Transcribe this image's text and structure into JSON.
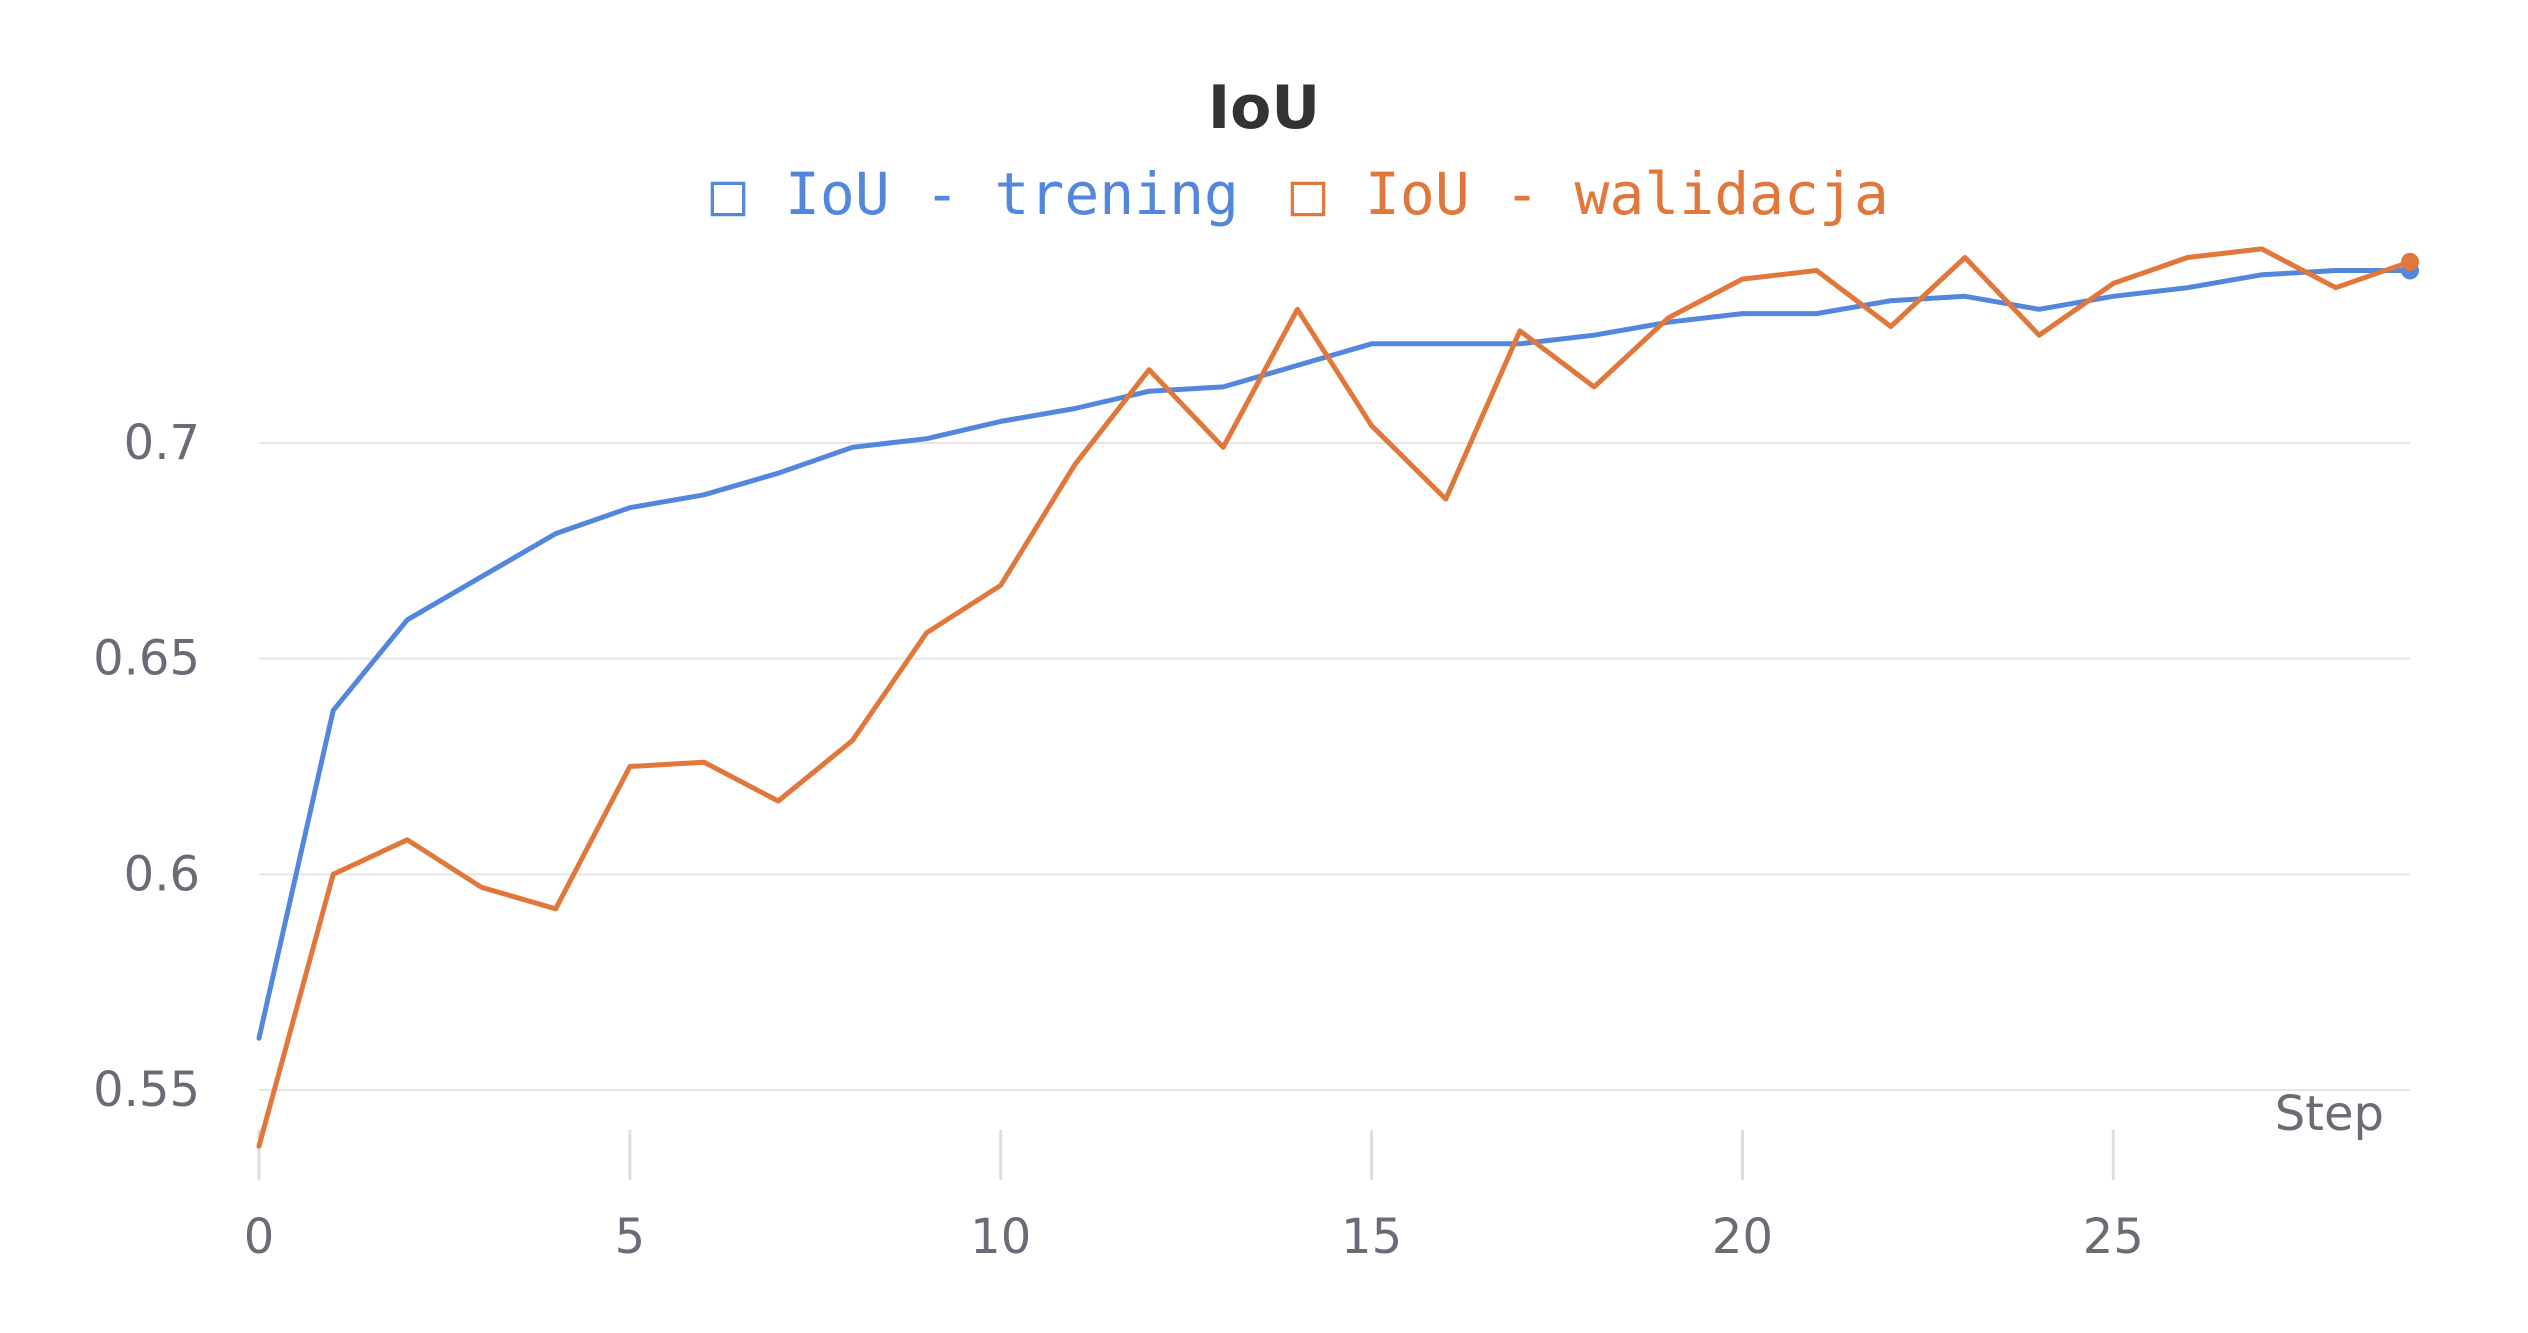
{
  "chart_data": {
    "type": "line",
    "title": "IoU",
    "xlabel": "Step",
    "ylabel": "",
    "xlim": [
      0,
      29
    ],
    "ylim": [
      0.535,
      0.745
    ],
    "x_ticks": [
      0,
      5,
      10,
      15,
      20,
      25
    ],
    "y_ticks": [
      0.55,
      0.6,
      0.65,
      0.7
    ],
    "y_tick_labels": [
      "0.55",
      "0.6",
      "0.65",
      "0.7"
    ],
    "x_tick_labels": [
      "0",
      "5",
      "10",
      "15",
      "20",
      "25"
    ],
    "grid": "horizontal",
    "legend_position": "top-center",
    "series": [
      {
        "name": "IoU - trening",
        "color": "#5387dd",
        "marker_glyph": "□",
        "x": [
          0,
          1,
          2,
          3,
          4,
          5,
          6,
          7,
          8,
          9,
          10,
          11,
          12,
          13,
          14,
          15,
          16,
          17,
          18,
          19,
          20,
          21,
          22,
          23,
          24,
          25,
          26,
          27,
          28,
          29
        ],
        "values": [
          0.562,
          0.638,
          0.659,
          0.669,
          0.679,
          0.685,
          0.688,
          0.693,
          0.699,
          0.701,
          0.705,
          0.708,
          0.712,
          0.713,
          0.718,
          0.723,
          0.723,
          0.723,
          0.725,
          0.728,
          0.73,
          0.73,
          0.733,
          0.734,
          0.731,
          0.734,
          0.736,
          0.739,
          0.74,
          0.74
        ]
      },
      {
        "name": "IoU - walidacja",
        "color": "#e1773b",
        "marker_glyph": "□",
        "x": [
          0,
          1,
          2,
          3,
          4,
          5,
          6,
          7,
          8,
          9,
          10,
          11,
          12,
          13,
          14,
          15,
          16,
          17,
          18,
          19,
          20,
          21,
          22,
          23,
          24,
          25,
          26,
          27,
          28,
          29
        ],
        "values": [
          0.537,
          0.6,
          0.608,
          0.597,
          0.592,
          0.625,
          0.626,
          0.617,
          0.631,
          0.656,
          0.667,
          0.695,
          0.717,
          0.699,
          0.731,
          0.704,
          0.687,
          0.726,
          0.713,
          0.729,
          0.738,
          0.74,
          0.727,
          0.743,
          0.725,
          0.737,
          0.743,
          0.745,
          0.736,
          0.742
        ]
      }
    ]
  }
}
